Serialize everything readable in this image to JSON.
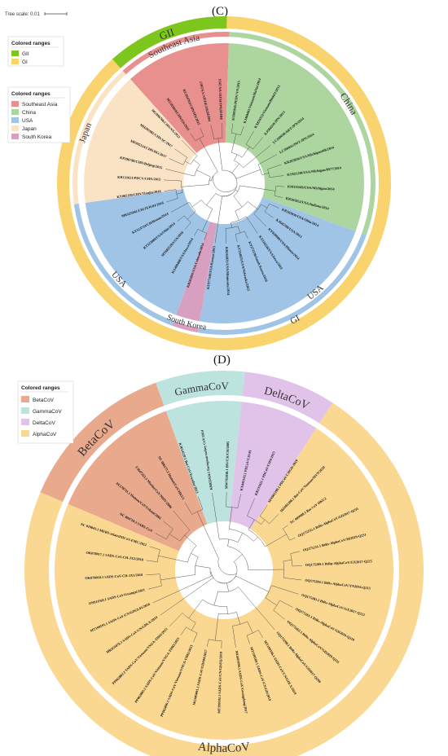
{
  "scale": {
    "label": "Tree scale: 0.01"
  },
  "panelC": {
    "label": "(C)",
    "legend_outer": {
      "title": "Colored ranges",
      "items": [
        {
          "label": "GII",
          "color": "#7dc61e"
        },
        {
          "label": "GI",
          "color": "#f9d36e"
        }
      ]
    },
    "legend_inner": {
      "title": "Colored ranges",
      "items": [
        {
          "label": "Southeast Asia",
          "color": "#e8908e"
        },
        {
          "label": "China",
          "color": "#acd5a0"
        },
        {
          "label": "USA",
          "color": "#9fc4e6"
        },
        {
          "label": "Japan",
          "color": "#fae3c5"
        },
        {
          "label": "South Korea",
          "color": "#d8a0c0"
        }
      ]
    },
    "outer_labels": {
      "gii": "GII",
      "gi": "GI"
    },
    "region_labels": {
      "sea": "Southeast Asia",
      "china": "China",
      "usa_right": "USA",
      "usa_bottom": "USA",
      "japan": "Japan",
      "korea": "South Korea"
    },
    "leaves": [
      "MH187037/PEDV/VN/2017",
      "MH187043/PEDV/VN/2013",
      "KT003945/PEDV/VN/2015",
      "KJ469481/Vietnam/HaNoi/2014",
      "KX834352/Vietnam/Binh22/2015",
      "KJ584359/JPN/2013",
      "LC260038/AKT/JPN/2014",
      "LC260041/IWT/JPN/2014",
      "KR265850/USA/Michigan448/2014",
      "KT021230/USA/Michigan/8977/2014",
      "KM111169/USA/Michigan/2014",
      "KR265852/USA/Indiana/2014",
      "KR265856/USA/Ohio/2014",
      "KJ645708/USA/2013",
      "KY828980/USA/Illinois/2014",
      "KT224256/USA/Iowa/2014",
      "KY272136/South Korea/2016",
      "KT324025/USA/Nebraska/2015",
      "KR265831/USA/Minnesota/2014",
      "KU977449/USA/Kansas/2015",
      "KR265841/USA/Colorado/2014",
      "KX499468/USA/Iowa/2014",
      "MT682528/USA/2016",
      "KT323980/USA/Ohio/2014",
      "KY513724/CH/Henan/2014",
      "MK625641/CH/JXJG01/2016",
      "KY065120/CHN/Tianjin/2016",
      "KR131621/PDCV/CHN/2015",
      "KP296780/CHN/Beijing/2015",
      "MF095124/CHN/HG/2017",
      "MH205982/CHN/SC/2017",
      "MG996766/CHN/NX/2022",
      "MT263010/CHN/GS/2021",
      "KU204703/CHN/HN/2015"
    ]
  },
  "panelD": {
    "label": "(D)",
    "legend": {
      "title": "Colored ranges",
      "items": [
        {
          "label": "BetaCoV",
          "color": "#e9a98d"
        },
        {
          "label": "GammaCoV",
          "color": "#bde3df"
        },
        {
          "label": "DeltaCoV",
          "color": "#e1c3ea"
        },
        {
          "label": "AlphaCoV",
          "color": "#fbd891"
        }
      ]
    },
    "outer_labels": {
      "beta": "BetaCoV",
      "gamma": "GammaCoV",
      "delta": "DeltaCoV",
      "alpha": "AlphaCoV"
    },
    "leaves": [
      "KR822424.1 European turkey CoV/2014",
      "MW792838.1 IBV/CK/CH/2005",
      "KX443143.1 PDCoV/CH-01",
      "KR131621.1 PDCoV/CHN/2015",
      "MN901399.1 PDCoV/CHGD-2019",
      "MZ081398.1 Bat-CoV/Yunnan/MYN/2020",
      "NC 009988.1 Bat CoV HKU2",
      "OQ175255.1 BtRs-AlphaCoV/GD2017-Q235",
      "OQ175251.1 BtRs-AlphaCoV/HI2019-Q231",
      "OQ175209.1 BtRp-AlphaCoV/GX2017-Q225",
      "OQ175204.1 BtRs-AlphaCoV/YN2016-Q215",
      "OQ175283.1 BtRs-AlphaCoV/GX2017-Q212",
      "OQ175261.1 BtRs-AlphaCoV/GD2019-Q210",
      "OQ175262.1 BtRs-AlphaCoV/GD2020-Q211",
      "OQ175208.1 BtRs-AlphaCoV/GD2017-Q209",
      "MT199590.1 SADS-CoV/CN/GDLX/2019",
      "MT199589.1 SADS-CoV/CN/GD/2019",
      "MG605090.1 SADS-CoV/Guangdong/2017",
      "MT199592.1 SADS-CoV/CN/GDZQ/2019",
      "MG605091.1 SADS-CoV/GDS04/2017",
      "PP062896.1 SADS-CoV/Vietnam/VNUA-TH02/2023",
      "PP062883.2 SADS-CoV/Vietnam/VNUA-TH03/2023",
      "PP062882.2 SADS-CoV/Vietnam/VNUA-TH02/2023",
      "MK651076.1 SADS-CoV/CN/GDLX/2019",
      "MT199591.1 SADS-CoV/CN/GDGL01/2016",
      "ON911569.1 SADS-CoV/Guangxi/2021",
      "OK078018.1 SADS-CoV-CH-JX1/2018",
      "OK078017.1 SADS-CoV-CH-JX2/2018",
      "NC 019843.1 MERS-related/HCoV-EMC/2012",
      "NC 004718.3 SARS-CoV",
      "AY278741.1 Human/CoV/Urbani/2003",
      "FJ647223.1 Murine/CoV/MHV/2006",
      "NC 006577.2 Human/CoV/HKU1",
      "KJ614529.1 Bat CoV/Ecuador/2013"
    ]
  }
}
